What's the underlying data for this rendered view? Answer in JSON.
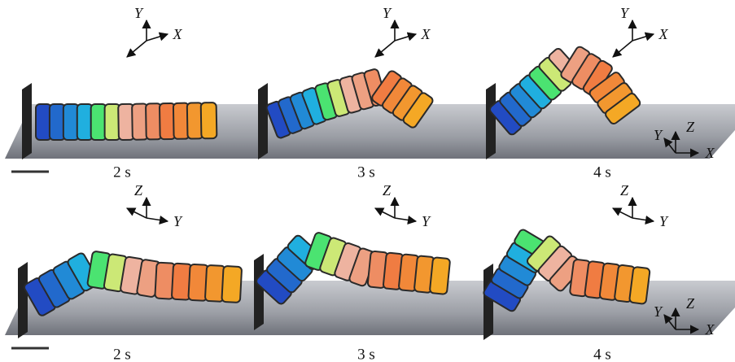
{
  "rows": [
    {
      "panels": [
        {
          "time": "2 s",
          "axes": [
            "Y",
            "X"
          ]
        },
        {
          "time": "3 s",
          "axes": [
            "Y",
            "X"
          ]
        },
        {
          "time": "4 s",
          "axes": [
            "Y",
            "X"
          ],
          "corner_axes": [
            "Y",
            "Z",
            "X"
          ]
        }
      ]
    },
    {
      "panels": [
        {
          "time": "2 s",
          "axes": [
            "Z",
            "Y"
          ]
        },
        {
          "time": "3 s",
          "axes": [
            "Z",
            "Y"
          ]
        },
        {
          "time": "4 s",
          "axes": [
            "Z",
            "Y"
          ],
          "corner_axes": [
            "Y",
            "Z",
            "X"
          ]
        }
      ]
    }
  ]
}
